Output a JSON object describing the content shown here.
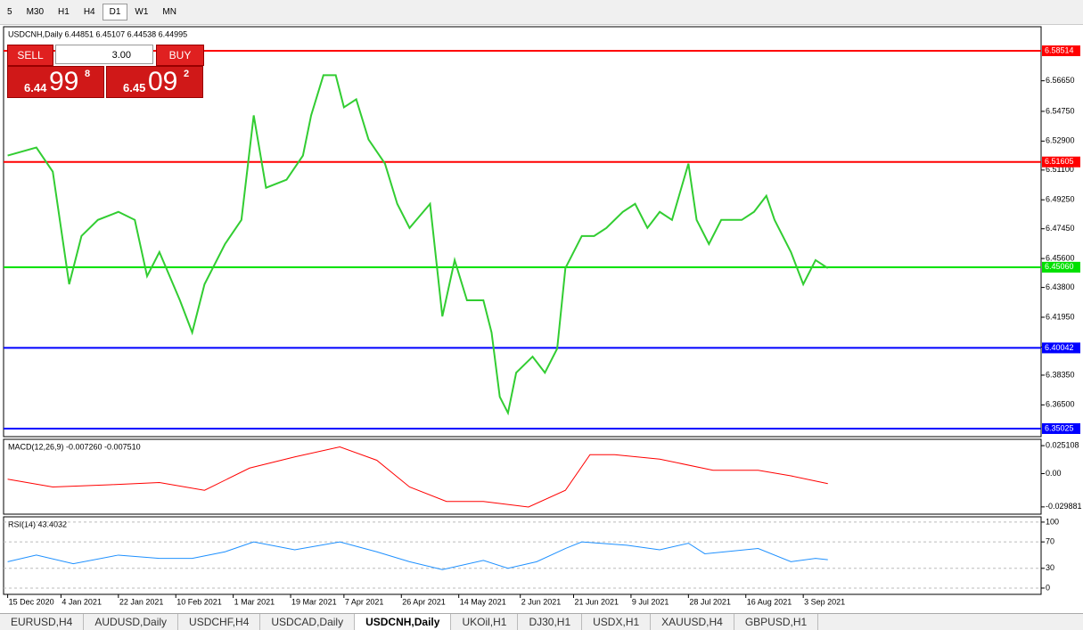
{
  "toolbar": {
    "timeframes": [
      "5",
      "M30",
      "H1",
      "H4",
      "D1",
      "W1",
      "MN"
    ]
  },
  "trade_panel": {
    "sell": "SELL",
    "buy": "BUY",
    "lots": "3.00",
    "bid": {
      "big": "6.44",
      "pips": "99",
      "frac": "8"
    },
    "ask": {
      "big": "6.45",
      "pips": "09",
      "frac": "2"
    }
  },
  "tabs": [
    "EURUSD,H4",
    "AUDUSD,Daily",
    "USDCHF,H4",
    "USDCAD,Daily",
    "USDCNH,Daily",
    "UKOil,H1",
    "DJ30,H1",
    "USDX,H1",
    "XAUUSD,H4",
    "GBPUSD,H1"
  ],
  "chart_data": [
    {
      "type": "line",
      "title": "USDCNH,Daily 6.44851 6.45107 6.44538 6.44995",
      "xlim": [
        -1,
        252
      ],
      "ylim": [
        6.34526,
        6.6001
      ],
      "xticks": [
        {
          "value": 0,
          "label": "15 Dec 2020"
        },
        {
          "value": 13,
          "label": "4 Jan 2021"
        },
        {
          "value": 27,
          "label": "22 Jan 2021"
        },
        {
          "value": 41,
          "label": "10 Feb 2021"
        },
        {
          "value": 55,
          "label": "1 Mar 2021"
        },
        {
          "value": 69,
          "label": "19 Mar 2021"
        },
        {
          "value": 82,
          "label": "7 Apr 2021"
        },
        {
          "value": 96,
          "label": "26 Apr 2021"
        },
        {
          "value": 110,
          "label": "14 May 2021"
        },
        {
          "value": 125,
          "label": "2 Jun 2021"
        },
        {
          "value": 138,
          "label": "21 Jun 2021"
        },
        {
          "value": 152,
          "label": "9 Jul 2021"
        },
        {
          "value": 166,
          "label": "28 Jul 2021"
        },
        {
          "value": 180,
          "label": "16 Aug 2021"
        },
        {
          "value": 194,
          "label": "3 Sep 2021"
        }
      ],
      "yticks": [
        {
          "value": 6.5665,
          "label": "6.56650"
        },
        {
          "value": 6.5475,
          "label": "6.54750"
        },
        {
          "value": 6.529,
          "label": "6.52900"
        },
        {
          "value": 6.511,
          "label": "6.51100"
        },
        {
          "value": 6.4925,
          "label": "6.49250"
        },
        {
          "value": 6.4745,
          "label": "6.47450"
        },
        {
          "value": 6.456,
          "label": "6.45600"
        },
        {
          "value": 6.438,
          "label": "6.43800"
        },
        {
          "value": 6.4195,
          "label": "6.41950"
        },
        {
          "value": 6.401,
          "label": "6.40100"
        },
        {
          "value": 6.3835,
          "label": "6.38350"
        },
        {
          "value": 6.365,
          "label": "6.36500"
        }
      ],
      "hlines": [
        {
          "value": 6.58514,
          "color": "#ff0000"
        },
        {
          "value": 6.51605,
          "color": "#ff0000"
        },
        {
          "value": 6.4506,
          "label": "6.45060",
          "color": "#00e000"
        },
        {
          "value": 6.40042,
          "color": "#0000ff"
        },
        {
          "value": 6.35025,
          "color": "#0000ff"
        }
      ],
      "series": [
        {
          "color": "#32cd32",
          "x": [
            0,
            7,
            11,
            15,
            18,
            22,
            27,
            31,
            34,
            37,
            42,
            45,
            48,
            53,
            57,
            60,
            63,
            68,
            72,
            74,
            77,
            80,
            82,
            85,
            88,
            92,
            95,
            98,
            103,
            106,
            109,
            112,
            116,
            118,
            120,
            122,
            124,
            128,
            131,
            134,
            136,
            140,
            143,
            146,
            150,
            153,
            156,
            159,
            162,
            166,
            168,
            171,
            174,
            179,
            182,
            185,
            187,
            191,
            194,
            197,
            200
          ],
          "values": [
            6.52,
            6.525,
            6.51,
            6.44,
            6.47,
            6.48,
            6.485,
            6.48,
            6.445,
            6.46,
            6.43,
            6.41,
            6.44,
            6.465,
            6.48,
            6.545,
            6.5,
            6.505,
            6.52,
            6.545,
            6.57,
            6.57,
            6.55,
            6.555,
            6.53,
            6.515,
            6.49,
            6.475,
            6.49,
            6.42,
            6.455,
            6.43,
            6.43,
            6.41,
            6.37,
            6.36,
            6.385,
            6.395,
            6.385,
            6.4,
            6.45,
            6.47,
            6.47,
            6.475,
            6.485,
            6.49,
            6.475,
            6.485,
            6.48,
            6.515,
            6.48,
            6.465,
            6.48,
            6.48,
            6.485,
            6.495,
            6.48,
            6.46,
            6.44,
            6.455,
            6.45
          ]
        }
      ]
    },
    {
      "type": "line",
      "title": "MACD(12,26,9) -0.007260 -0.007510",
      "ylim": [
        -0.0364,
        0.0308
      ],
      "yticks": [
        0.025108,
        {
          "value": 0,
          "label": "0.00"
        },
        -0.029881
      ],
      "series": [
        {
          "color": "#ff0000",
          "x": [
            0,
            11,
            25,
            37,
            48,
            59,
            70,
            81,
            90,
            98,
            107,
            116,
            127,
            136,
            142,
            148,
            159,
            172,
            183,
            191,
            200
          ],
          "values": [
            -0.005,
            -0.012,
            -0.01,
            -0.008,
            -0.015,
            0.005,
            0.015,
            0.024,
            0.012,
            -0.012,
            -0.025,
            -0.025,
            -0.03,
            -0.015,
            0.017,
            0.017,
            0.013,
            0.003,
            0.003,
            -0.002,
            -0.009
          ]
        }
      ]
    },
    {
      "type": "line",
      "title": "RSI(14) 43.4032",
      "ylim": [
        -9.5,
        108
      ],
      "yticks": [
        100,
        70,
        30,
        0
      ],
      "series": [
        {
          "color": "#1e90ff",
          "x": [
            0,
            7,
            16,
            27,
            37,
            45,
            53,
            60,
            70,
            81,
            90,
            98,
            106,
            116,
            122,
            129,
            136,
            140,
            151,
            159,
            166,
            170,
            183,
            191,
            197,
            200
          ],
          "values": [
            40,
            50,
            37,
            50,
            45,
            45,
            55,
            70,
            58,
            70,
            55,
            40,
            28,
            42,
            30,
            40,
            60,
            70,
            65,
            58,
            68,
            52,
            60,
            40,
            45,
            43
          ]
        }
      ]
    }
  ]
}
